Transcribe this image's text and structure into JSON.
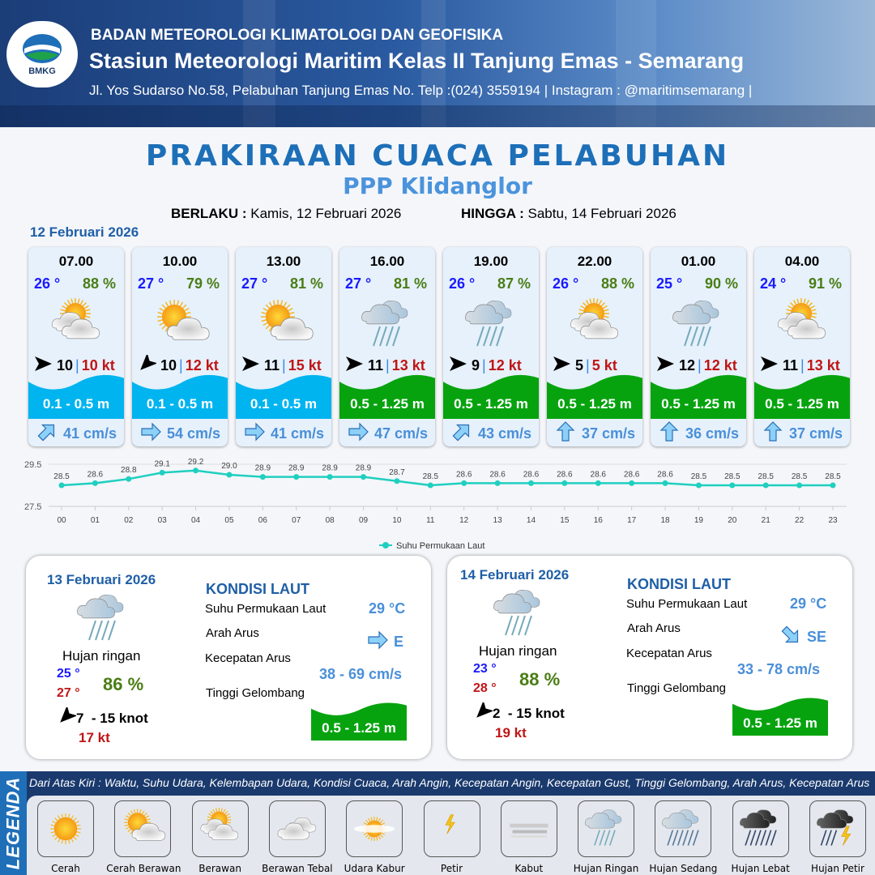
{
  "header": {
    "logo_text": "BMKG",
    "agency": "BADAN METEOROLOGI KLIMATOLOGI DAN GEOFISIKA",
    "station": "Stasiun Meteorologi Maritim Kelas II Tanjung Emas - Semarang",
    "address": "Jl. Yos Sudarso No.58, Pelabuhan Tanjung Emas No. Telp :(024) 3559194 | Instagram : @maritimsemarang |"
  },
  "title": "PRAKIRAAN CUACA PELABUHAN",
  "subtitle": "PPP Klidanglor",
  "validity": {
    "from_label": "BERLAKU :",
    "from": "Kamis, 12 Februari 2026",
    "to_label": "HINGGA :",
    "to": "Sabtu, 14 Februari 2026"
  },
  "day1": {
    "date": "12 Februari 2026",
    "forecasts": [
      {
        "time": "07.00",
        "temp": "26 °",
        "hum": "88 %",
        "icon": "berawan",
        "wind_dir": "E",
        "wind": "10",
        "gust": "10 kt",
        "wave": "0.1 - 0.5 m",
        "wave_color": "#00b4f0",
        "current_dir": "NE",
        "current": "41 cm/s"
      },
      {
        "time": "10.00",
        "temp": "27 °",
        "hum": "79 %",
        "icon": "cerah-berawan",
        "wind_dir": "SW",
        "wind": "10",
        "gust": "12 kt",
        "wave": "0.1 - 0.5 m",
        "wave_color": "#00b4f0",
        "current_dir": "E",
        "current": "54 cm/s"
      },
      {
        "time": "13.00",
        "temp": "27 °",
        "hum": "81 %",
        "icon": "cerah-berawan",
        "wind_dir": "E",
        "wind": "11",
        "gust": "15 kt",
        "wave": "0.1 - 0.5 m",
        "wave_color": "#00b4f0",
        "current_dir": "E",
        "current": "41 cm/s"
      },
      {
        "time": "16.00",
        "temp": "27 °",
        "hum": "81 %",
        "icon": "hujan-ringan",
        "wind_dir": "E",
        "wind": "11",
        "gust": "13 kt",
        "wave": "0.5 - 1.25 m",
        "wave_color": "#07a30f",
        "current_dir": "E",
        "current": "47 cm/s"
      },
      {
        "time": "19.00",
        "temp": "26 °",
        "hum": "87 %",
        "icon": "hujan-ringan",
        "wind_dir": "E",
        "wind": "9",
        "gust": "12 kt",
        "wave": "0.5 - 1.25 m",
        "wave_color": "#07a30f",
        "current_dir": "NE",
        "current": "43 cm/s"
      },
      {
        "time": "22.00",
        "temp": "26 °",
        "hum": "88 %",
        "icon": "berawan",
        "wind_dir": "E",
        "wind": "5",
        "gust": "5 kt",
        "wave": "0.5 - 1.25 m",
        "wave_color": "#07a30f",
        "current_dir": "N",
        "current": "37 cm/s"
      },
      {
        "time": "01.00",
        "temp": "25 °",
        "hum": "90 %",
        "icon": "hujan-ringan",
        "wind_dir": "E",
        "wind": "12",
        "gust": "12 kt",
        "wave": "0.5 - 1.25 m",
        "wave_color": "#07a30f",
        "current_dir": "N",
        "current": "36 cm/s"
      },
      {
        "time": "04.00",
        "temp": "24 °",
        "hum": "91 %",
        "icon": "berawan",
        "wind_dir": "E",
        "wind": "11",
        "gust": "13 kt",
        "wave": "0.5 - 1.25 m",
        "wave_color": "#07a30f",
        "current_dir": "N",
        "current": "37 cm/s"
      }
    ]
  },
  "chart_data": {
    "type": "line",
    "x": [
      "00",
      "01",
      "02",
      "03",
      "04",
      "05",
      "06",
      "07",
      "08",
      "09",
      "10",
      "11",
      "12",
      "13",
      "14",
      "15",
      "16",
      "17",
      "18",
      "19",
      "20",
      "21",
      "22",
      "23"
    ],
    "series": [
      {
        "name": "Suhu Permukaan Laut",
        "values": [
          28.5,
          28.6,
          28.8,
          29.1,
          29.2,
          29.0,
          28.9,
          28.9,
          28.9,
          28.9,
          28.7,
          28.5,
          28.6,
          28.6,
          28.6,
          28.6,
          28.6,
          28.6,
          28.6,
          28.5,
          28.5,
          28.5,
          28.5,
          28.5
        ],
        "color": "#1fcfbf"
      }
    ],
    "yticks": [
      "29.5",
      "27.5"
    ],
    "ylim": [
      27.5,
      29.5
    ],
    "grid": true,
    "legend": "bottom"
  },
  "days": [
    {
      "date": "13 Februari 2026",
      "icon": "hujan-ringan",
      "condition": "Hujan ringan",
      "tmin": "25 °",
      "tmax": "27 °",
      "hum": "86 %",
      "wind_dir": "SW",
      "wind": "7  - 15 knot",
      "gust": "17 kt",
      "sea_title": "KONDISI LAUT",
      "sst_label": "Suhu Permukaan Laut",
      "sst": "29 °C",
      "dir_label": "Arah Arus",
      "current_dir": "E",
      "speed_label": "Kecepatan Arus",
      "speed": "38 - 69 cm/s",
      "wave_label": "Tinggi Gelombang",
      "wave": "0.5 - 1.25 m",
      "wave_color": "#07a30f"
    },
    {
      "date": "14 Februari 2026",
      "icon": "hujan-ringan",
      "condition": "Hujan ringan",
      "tmin": "23 °",
      "tmax": "28 °",
      "hum": "88 %",
      "wind_dir": "SW",
      "wind": "2  - 15 knot",
      "gust": "19 kt",
      "sea_title": "KONDISI LAUT",
      "sst_label": "Suhu Permukaan Laut",
      "sst": "29 °C",
      "dir_label": "Arah Arus",
      "current_dir": "SE",
      "speed_label": "Kecepatan Arus",
      "speed": "33 - 78 cm/s",
      "wave_label": "Tinggi Gelombang",
      "wave": "0.5 - 1.25 m",
      "wave_color": "#07a30f"
    }
  ],
  "legend": {
    "tag": "LEGENDA",
    "description": "Dari Atas Kiri : Waktu, Suhu Udara, Kelembapan Udara, Kondisi Cuaca, Arah Angin, Kecepatan Angin, Kecepatan Gust, Tinggi Gelombang, Arah Arus, Kecepatan Arus",
    "items": [
      {
        "icon": "cerah",
        "label": "Cerah"
      },
      {
        "icon": "cerah-berawan",
        "label": "Cerah Berawan"
      },
      {
        "icon": "berawan",
        "label": "Berawan"
      },
      {
        "icon": "berawan-tebal",
        "label": "Berawan Tebal"
      },
      {
        "icon": "udara-kabur",
        "label": "Udara Kabur"
      },
      {
        "icon": "petir",
        "label": "Petir"
      },
      {
        "icon": "kabut",
        "label": "Kabut"
      },
      {
        "icon": "hujan-ringan",
        "label": "Hujan Ringan"
      },
      {
        "icon": "hujan-sedang",
        "label": "Hujan Sedang"
      },
      {
        "icon": "hujan-lebat",
        "label": "Hujan Lebat"
      },
      {
        "icon": "hujan-petir",
        "label": "Hujan Petir"
      }
    ]
  }
}
